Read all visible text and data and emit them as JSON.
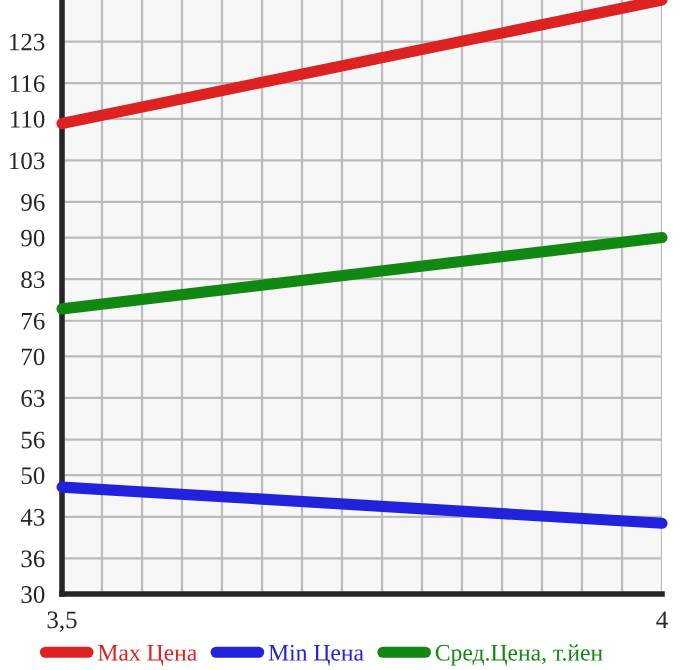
{
  "chart_data": {
    "type": "line",
    "x": [
      3.5,
      4
    ],
    "series": [
      {
        "name": "Max Цена",
        "color": "#dd2222",
        "values": [
          109.2,
          130
        ]
      },
      {
        "name": "Min Цена",
        "color": "#2222dd",
        "values": [
          48,
          41.9
        ]
      },
      {
        "name": "Сред.Цена, т.йен",
        "color": "#118811",
        "values": [
          78,
          90
        ]
      }
    ],
    "xlim": [
      3.5,
      4
    ],
    "xticks": [
      {
        "value": 3.5,
        "label": "3,5"
      },
      {
        "value": 3.5333,
        "label": null
      },
      {
        "value": 3.5667,
        "label": null
      },
      {
        "value": 3.6,
        "label": null
      },
      {
        "value": 3.6333,
        "label": null
      },
      {
        "value": 3.6667,
        "label": null
      },
      {
        "value": 3.7,
        "label": null
      },
      {
        "value": 3.7333,
        "label": null
      },
      {
        "value": 3.7667,
        "label": null
      },
      {
        "value": 3.8,
        "label": null
      },
      {
        "value": 3.8333,
        "label": null
      },
      {
        "value": 3.8667,
        "label": null
      },
      {
        "value": 3.9,
        "label": null
      },
      {
        "value": 3.9333,
        "label": null
      },
      {
        "value": 3.9667,
        "label": null
      },
      {
        "value": 4,
        "label": "4"
      }
    ],
    "ylim": [
      30,
      130
    ],
    "yticks": [
      30,
      36,
      43,
      50,
      56,
      63,
      70,
      76,
      83,
      90,
      96,
      103,
      110,
      116,
      123
    ],
    "grid": true,
    "legend": "bottom",
    "marker": "none",
    "line_style": "solid"
  }
}
